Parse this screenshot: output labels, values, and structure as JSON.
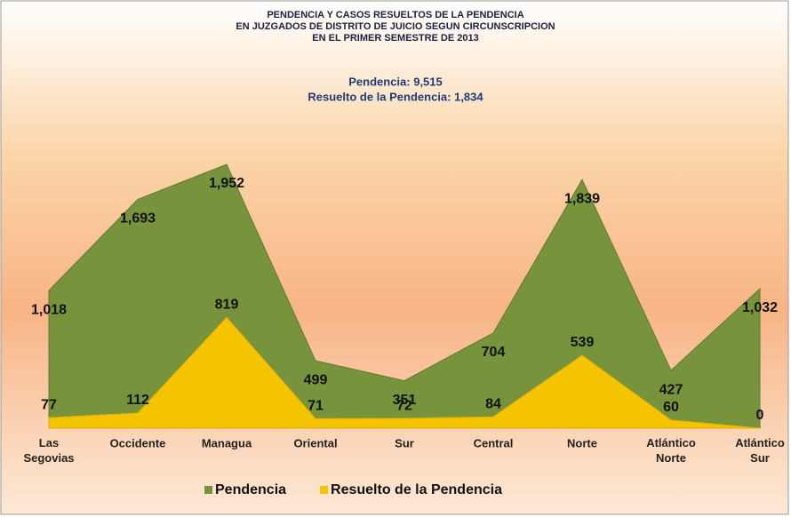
{
  "chart_data": {
    "type": "area",
    "title": [
      "PENDENCIA Y CASOS RESUELTOS DE LA PENDENCIA",
      "EN JUZGADOS DE DISTRITO DE JUICIO SEGUN CIRCUNSCRIPCION",
      "EN EL PRIMER SEMESTRE DE 2013"
    ],
    "subtitle": [
      "Pendencia: 9,515",
      "Resuelto de la Pendencia: 1,834"
    ],
    "categories": [
      "Las Segovias",
      "Occidente",
      "Managua",
      "Oriental",
      "Sur",
      "Central",
      "Norte",
      "Atlántico Norte",
      "Atlántico Sur"
    ],
    "series": [
      {
        "name": "Pendencia",
        "color": "#77933c",
        "values": [
          1018,
          1693,
          1952,
          499,
          351,
          704,
          1839,
          427,
          1032
        ],
        "value_labels": [
          "1,018",
          "1,693",
          "1,952",
          "499",
          "351",
          "704",
          "1,839",
          "427",
          "1,032"
        ]
      },
      {
        "name": "Resuelto de la Pendencia",
        "color": "#f5c400",
        "values": [
          77,
          112,
          819,
          71,
          72,
          84,
          539,
          60,
          0
        ]
      }
    ]
  }
}
